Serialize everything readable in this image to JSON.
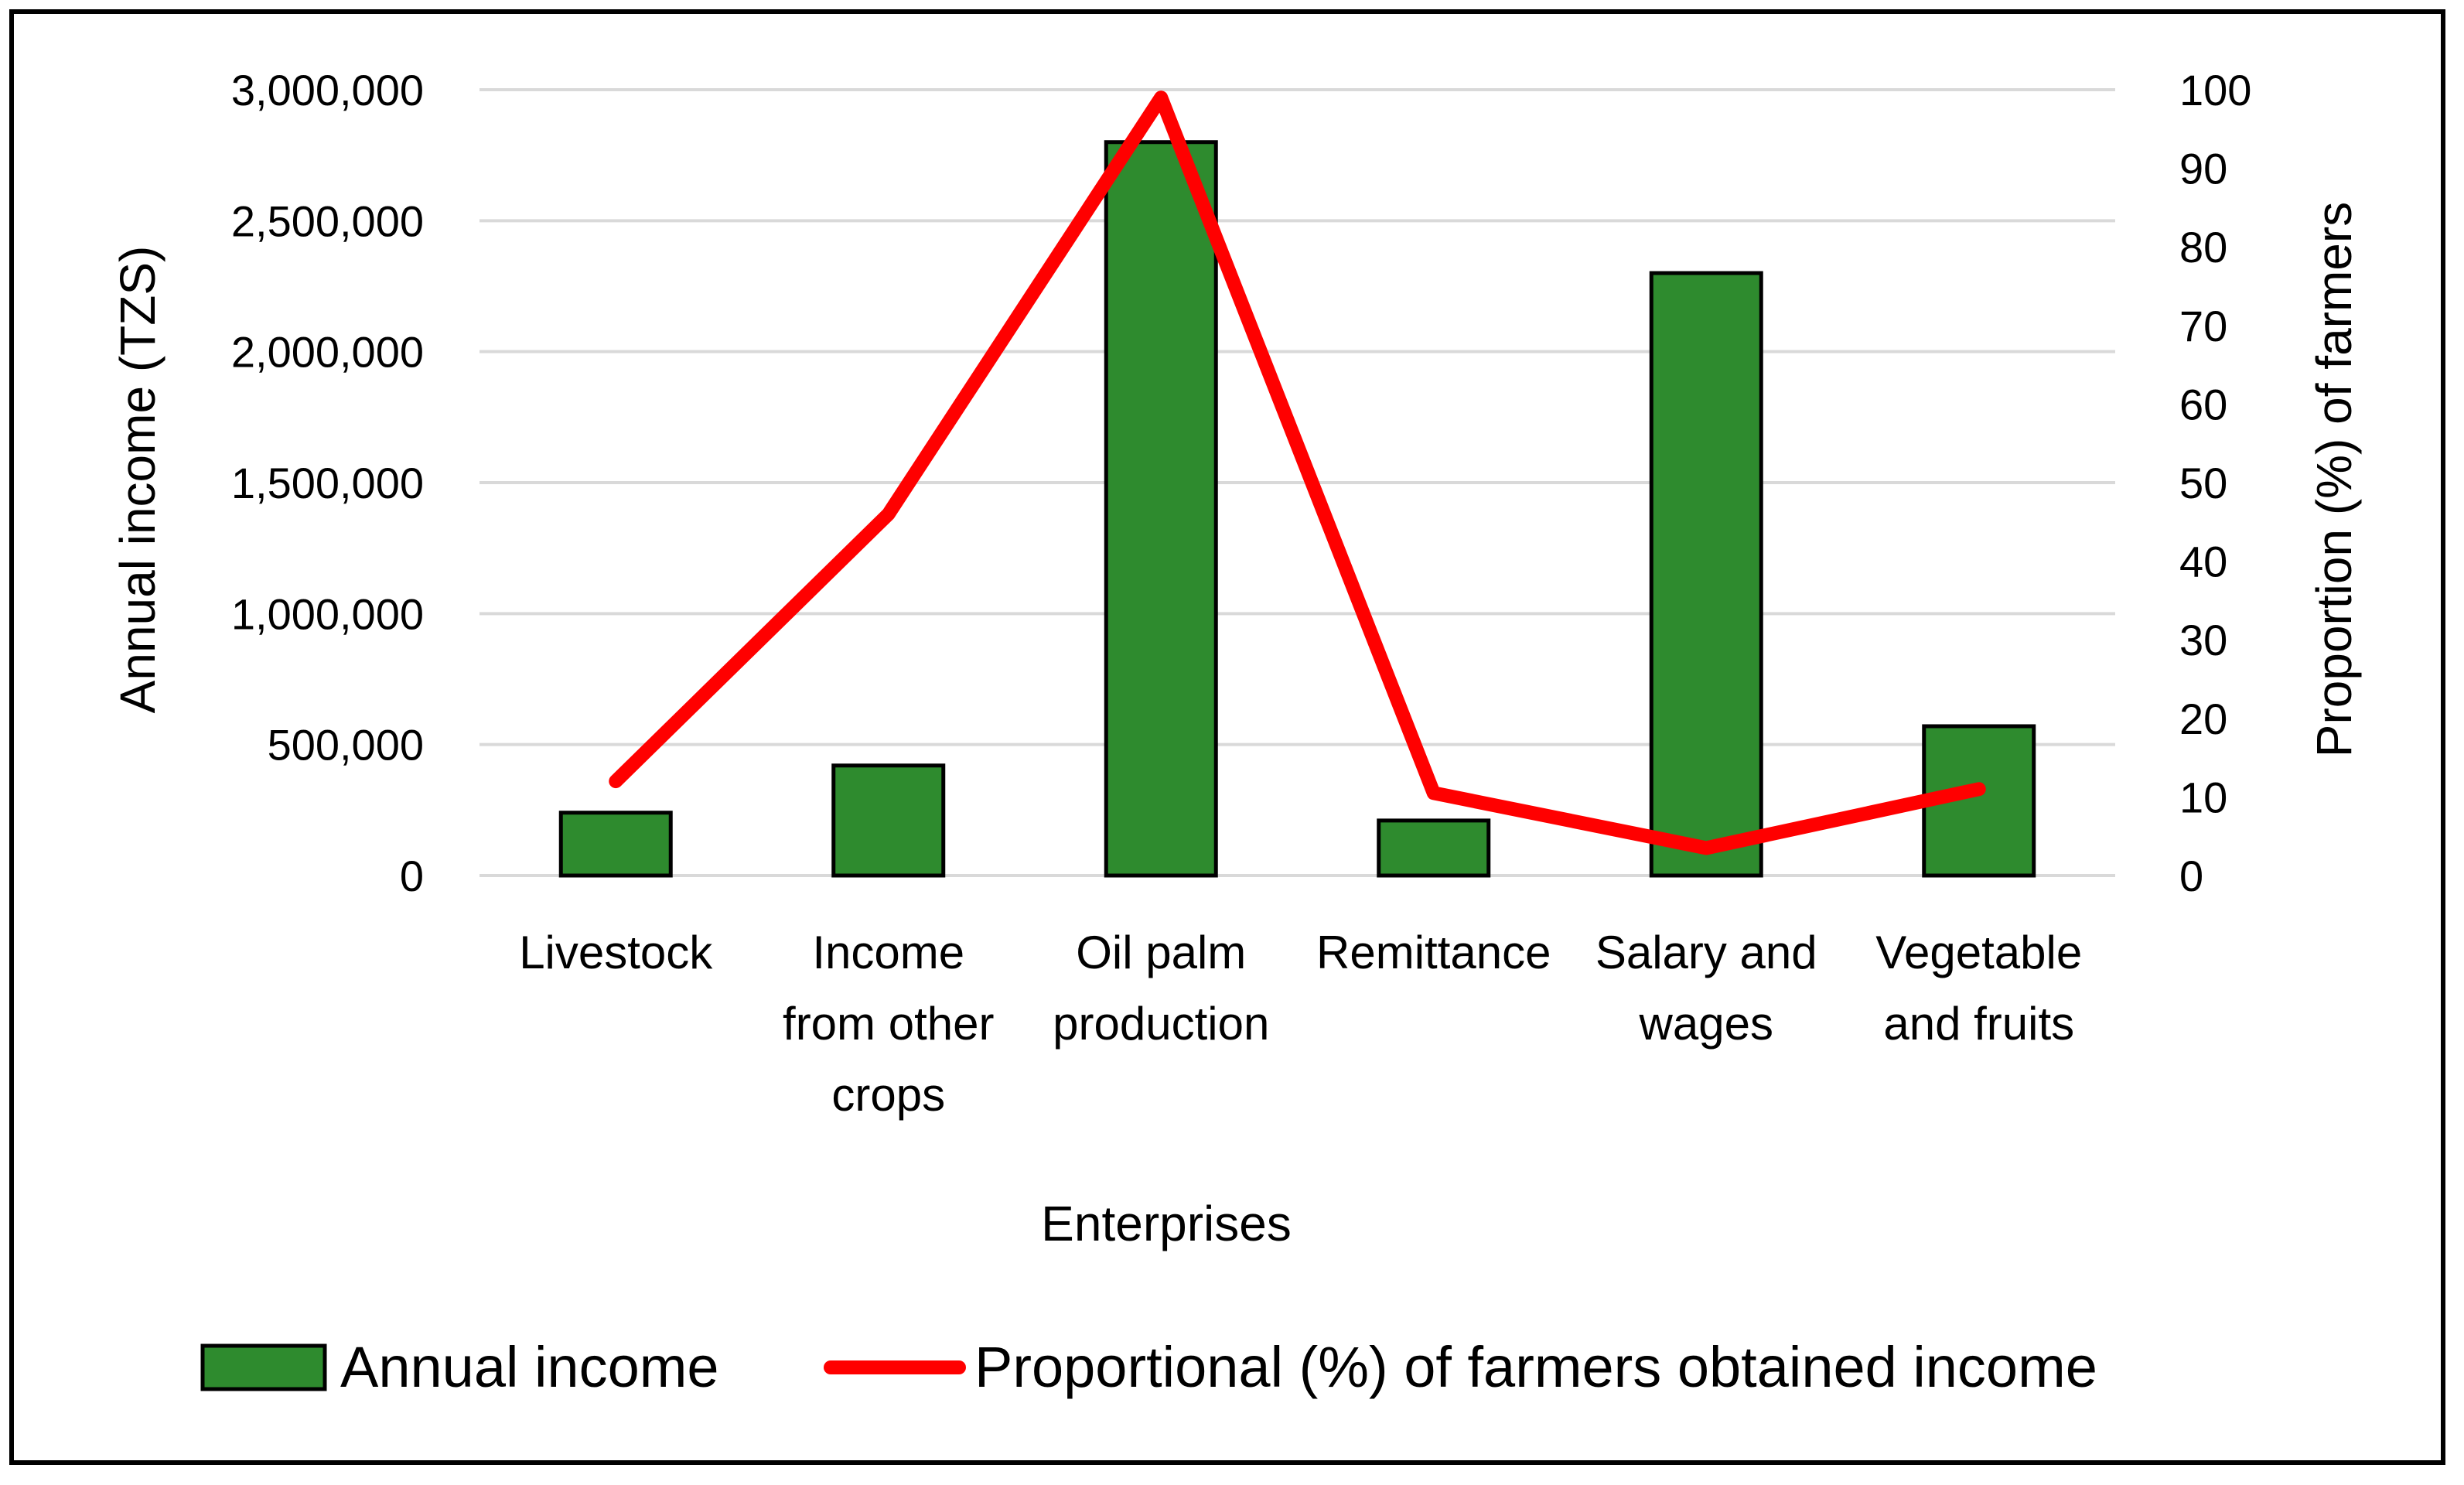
{
  "chart_data": {
    "type": "bar",
    "title": "",
    "xlabel": "Enterprises",
    "ylabel": "Annual income (TZS)",
    "y2label": "Proportion (%) of farmers",
    "categories": [
      [
        "Livestock"
      ],
      [
        "Income",
        "from other",
        "crops"
      ],
      [
        "Oil palm",
        "production"
      ],
      [
        "Remittance"
      ],
      [
        "Salary and",
        "wages"
      ],
      [
        "Vegetable",
        "and fruits"
      ]
    ],
    "ylim": [
      0,
      3000000
    ],
    "yticks": [
      "0",
      "500,000",
      "1,000,000",
      "1,500,000",
      "2,000,000",
      "2,500,000",
      "3,000,000"
    ],
    "y2lim": [
      0,
      100
    ],
    "y2ticks": [
      "0",
      "10",
      "20",
      "30",
      "40",
      "50",
      "60",
      "70",
      "80",
      "90",
      "100"
    ],
    "grid": true,
    "legend_position": "bottom",
    "series": [
      {
        "name": "Annual income",
        "type": "bar",
        "axis": "left",
        "color": "#2e8b2e",
        "values": [
          240000,
          420000,
          2800000,
          210000,
          2300000,
          570000
        ]
      },
      {
        "name": "Proportional (%) of farmers obtained income",
        "type": "line",
        "axis": "right",
        "color": "#ff0000",
        "values": [
          12,
          46,
          99,
          10.5,
          3.5,
          11
        ]
      }
    ]
  }
}
